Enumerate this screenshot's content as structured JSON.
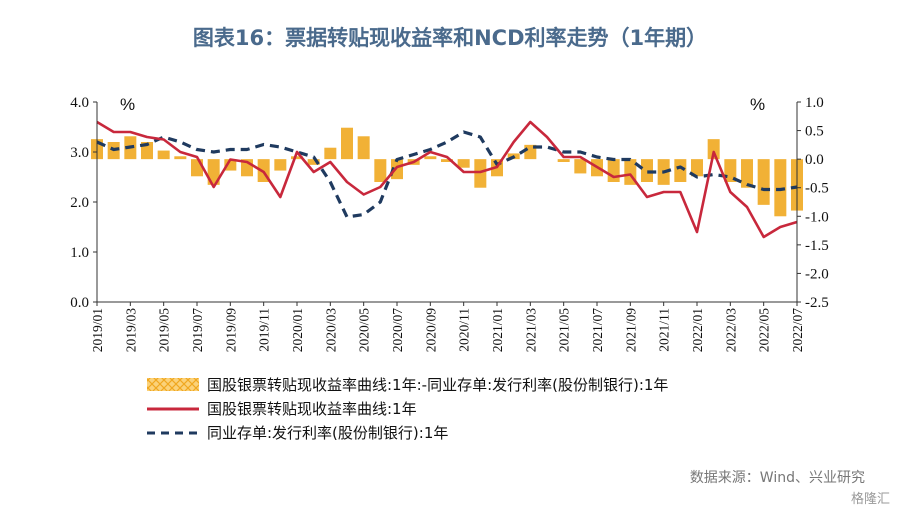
{
  "title": "图表16：票据转贴现收益率和NCD利率走势（1年期）",
  "source": "数据来源：Wind、兴业研究",
  "watermark": "格隆汇",
  "colors": {
    "spread": "#f0a820",
    "discount": "#c8283c",
    "ncd": "#1f3a5f",
    "title": "#4a6a8c"
  },
  "chart_data": {
    "type": "line",
    "left_axis": {
      "unit": "%",
      "ylim": [
        0,
        4
      ],
      "ticks": [
        "0.0",
        "1.0",
        "2.0",
        "3.0",
        "4.0"
      ]
    },
    "right_axis": {
      "unit": "%",
      "ylim": [
        -2.5,
        1.0
      ],
      "ticks": [
        "-2.5",
        "-2.0",
        "-1.5",
        "-1.0",
        "-0.5",
        "0.0",
        "0.5",
        "1.0"
      ]
    },
    "x_ticks": [
      "2019/01",
      "2019/03",
      "2019/05",
      "2019/07",
      "2019/09",
      "2019/11",
      "2020/01",
      "2020/03",
      "2020/05",
      "2020/07",
      "2020/09",
      "2020/11",
      "2021/01",
      "2021/03",
      "2021/05",
      "2021/07",
      "2021/09",
      "2021/11",
      "2022/01",
      "2022/03",
      "2022/05",
      "2022/07"
    ],
    "x": [
      "2019-01",
      "2019-02",
      "2019-03",
      "2019-04",
      "2019-05",
      "2019-06",
      "2019-07",
      "2019-08",
      "2019-09",
      "2019-10",
      "2019-11",
      "2019-12",
      "2020-01",
      "2020-02",
      "2020-03",
      "2020-04",
      "2020-05",
      "2020-06",
      "2020-07",
      "2020-08",
      "2020-09",
      "2020-10",
      "2020-11",
      "2020-12",
      "2021-01",
      "2021-02",
      "2021-03",
      "2021-04",
      "2021-05",
      "2021-06",
      "2021-07",
      "2021-08",
      "2021-09",
      "2021-10",
      "2021-11",
      "2021-12",
      "2022-01",
      "2022-02",
      "2022-03",
      "2022-04",
      "2022-05",
      "2022-06",
      "2022-07"
    ],
    "series": [
      {
        "name": "国股银票转贴现收益率曲线:1年:-同业存单:发行利率(股份制银行):1年",
        "type": "bar",
        "axis": "right",
        "values": [
          0.35,
          0.3,
          0.4,
          0.3,
          0.15,
          0.05,
          -0.3,
          -0.45,
          -0.2,
          -0.3,
          -0.4,
          -0.2,
          0.05,
          -0.1,
          0.2,
          0.55,
          0.4,
          -0.4,
          -0.35,
          -0.1,
          0.05,
          -0.05,
          -0.15,
          -0.5,
          -0.3,
          0.1,
          0.25,
          0.0,
          -0.05,
          -0.25,
          -0.3,
          -0.4,
          -0.45,
          -0.4,
          -0.45,
          -0.4,
          -0.3,
          0.35,
          -0.4,
          -0.5,
          -0.8,
          -1.0,
          -0.9
        ]
      },
      {
        "name": "国股银票转贴现收益率曲线:1年",
        "type": "line",
        "axis": "left",
        "values": [
          3.6,
          3.4,
          3.4,
          3.3,
          3.25,
          3.0,
          2.9,
          2.3,
          2.85,
          2.8,
          2.6,
          2.1,
          3.0,
          2.6,
          2.8,
          2.4,
          2.15,
          2.3,
          2.7,
          2.8,
          3.0,
          2.9,
          2.6,
          2.6,
          2.7,
          3.2,
          3.6,
          3.3,
          2.9,
          2.9,
          2.7,
          2.5,
          2.55,
          2.1,
          2.2,
          2.2,
          1.4,
          3.0,
          2.2,
          1.9,
          1.3,
          1.5,
          1.6
        ]
      },
      {
        "name": "同业存单:发行利率(股份制银行):1年",
        "type": "line",
        "axis": "left",
        "dash": true,
        "values": [
          3.2,
          3.05,
          3.1,
          3.15,
          3.3,
          3.2,
          3.05,
          3.0,
          3.05,
          3.05,
          3.15,
          3.1,
          3.0,
          2.9,
          2.4,
          1.7,
          1.75,
          2.0,
          2.85,
          2.95,
          3.05,
          3.2,
          3.4,
          3.3,
          2.75,
          2.9,
          3.1,
          3.1,
          3.0,
          3.0,
          2.9,
          2.85,
          2.85,
          2.6,
          2.6,
          2.7,
          2.5,
          2.55,
          2.5,
          2.35,
          2.25,
          2.25,
          2.3
        ]
      }
    ],
    "legend": [
      "国股银票转贴现收益率曲线:1年:-同业存单:发行利率(股份制银行):1年",
      "国股银票转贴现收益率曲线:1年",
      "同业存单:发行利率(股份制银行):1年"
    ]
  }
}
